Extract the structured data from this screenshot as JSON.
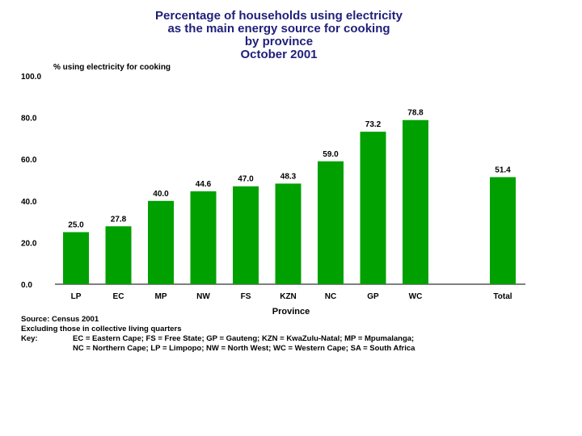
{
  "title": {
    "line1": "Percentage of households using electricity",
    "line2": "as the main energy source for cooking",
    "line3": "by province",
    "line4": "October 2001"
  },
  "chart_data": {
    "type": "bar",
    "title": "Percentage of households using electricity as the main energy source for cooking by province October 2001",
    "ylabel": "% using electricity for cooking",
    "xlabel": "Province",
    "categories": [
      "LP",
      "EC",
      "MP",
      "NW",
      "FS",
      "KZN",
      "NC",
      "GP",
      "WC",
      "Total"
    ],
    "values": [
      25.0,
      27.8,
      40.0,
      44.6,
      47.0,
      48.3,
      59.0,
      73.2,
      78.8,
      51.4
    ],
    "value_labels": [
      "25.0",
      "27.8",
      "40.0",
      "44.6",
      "47.0",
      "48.3",
      "59.0",
      "73.2",
      "78.8",
      "51.4"
    ],
    "ylim": [
      0,
      100
    ],
    "yticks": [
      "0.0",
      "20.0",
      "40.0",
      "60.0",
      "80.0",
      "100.0"
    ],
    "bar_color": "#00a000",
    "grid": false
  },
  "notes": {
    "source": "Source: Census 2001",
    "excluding": "Excluding those in collective living quarters",
    "key_label": "Key:",
    "key_line1": "EC = Eastern Cape; FS = Free State; GP = Gauteng; KZN = KwaZulu-Natal; MP = Mpumalanga;",
    "key_line2": "NC = Northern Cape; LP = Limpopo; NW = North West; WC = Western Cape;  SA = South Africa"
  }
}
